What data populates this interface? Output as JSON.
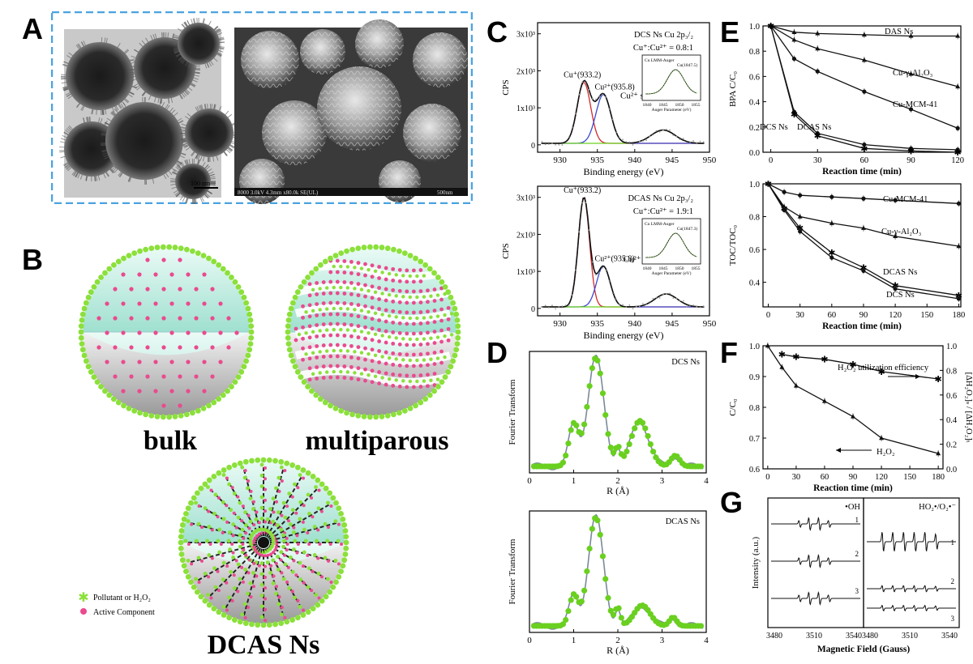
{
  "panels": {
    "A": {
      "label": "A",
      "tem_scale": "100 nm",
      "sem_info": "8000 3.0kV 4.3mm x80.0k SE(UL)",
      "sem_scale": "500nm"
    },
    "B": {
      "label": "B",
      "names": [
        "bulk",
        "multiparous",
        "DCAS Ns"
      ],
      "legend": [
        "Pollutant or H₂O₂",
        "Active Component"
      ]
    },
    "C": {
      "label": "C"
    },
    "D": {
      "label": "D"
    },
    "E": {
      "label": "E"
    },
    "F": {
      "label": "F"
    },
    "G": {
      "label": "G"
    }
  },
  "colors": {
    "green": "#8be03a",
    "pink": "#ea4a8f",
    "frame": "#4aa3e0",
    "red": "#d42a2a",
    "blue": "#3a4ad0",
    "black": "#111111",
    "lime": "#6ad020"
  },
  "chart_data": [
    {
      "id": "C-top",
      "type": "line",
      "xlabel": "Binding energy (eV)",
      "ylabel": "CPS",
      "xlim": [
        927,
        950
      ],
      "xticks": [
        930,
        935,
        940,
        945,
        950
      ],
      "ylim": [
        0,
        3000
      ],
      "yticks": [
        "0",
        "1x10³",
        "2x10³",
        "3x10³"
      ],
      "header": [
        "DCS Ns  Cu 2p₃/₂",
        "Cu⁺:Cu²⁺ = 0.8:1"
      ],
      "annotations": [
        "Cu⁺(933.2)",
        "Cu²⁺(935.8)",
        "Cu²⁺ satellite (943.8)"
      ],
      "inset": {
        "title": "Cu LMM-Auger",
        "peak": "Cu(1847.5)",
        "xlabel": "Auger Parameter (eV)",
        "xticks": [
          1840,
          1845,
          1850,
          1855
        ]
      },
      "series": [
        {
          "color": "red",
          "peaks": [
            [
              933.2,
              1650,
              0.9
            ]
          ]
        },
        {
          "color": "blue",
          "peaks": [
            [
              935.8,
              1320,
              1.0
            ]
          ]
        },
        {
          "color": "lime",
          "peaks": [
            [
              943.8,
              360,
              1.6
            ]
          ]
        },
        {
          "color": "black",
          "peaks": [
            [
              933.2,
              1650,
              0.9
            ],
            [
              935.8,
              1320,
              1.0
            ],
            [
              943.8,
              360,
              1.6
            ]
          ]
        }
      ]
    },
    {
      "id": "C-bottom",
      "type": "line",
      "xlabel": "Binding energy (eV)",
      "ylabel": "CPS",
      "xlim": [
        927,
        950
      ],
      "xticks": [
        930,
        935,
        940,
        945,
        950
      ],
      "ylim": [
        0,
        3000
      ],
      "yticks": [
        "0",
        "1x10³",
        "2x10³",
        "3x10³"
      ],
      "header": [
        "DCAS Ns  Cu 2p₃/₂",
        "Cu⁺:Cu²⁺ = 1.9:1"
      ],
      "annotations": [
        "Cu⁺(933.2)",
        "Cu²⁺(935.8)",
        "Cu²⁺ satellite (944.2)"
      ],
      "inset": {
        "title": "Cu LMM-Auger",
        "peak": "Cu(1847.3)",
        "xlabel": "Auger Parameter (eV)",
        "xticks": [
          1840,
          1845,
          1850,
          1855
        ]
      },
      "series": [
        {
          "color": "red",
          "peaks": [
            [
              933.2,
              2950,
              0.75
            ]
          ]
        },
        {
          "color": "blue",
          "peaks": [
            [
              935.8,
              1100,
              0.9
            ]
          ]
        },
        {
          "color": "lime",
          "peaks": [
            [
              944.2,
              350,
              1.5
            ]
          ]
        },
        {
          "color": "black",
          "peaks": [
            [
              933.2,
              2950,
              0.75
            ],
            [
              935.8,
              1100,
              0.9
            ],
            [
              944.2,
              350,
              1.5
            ]
          ]
        }
      ]
    },
    {
      "id": "D-top",
      "type": "line",
      "label": "DCS Ns",
      "xlabel": "R (Å)",
      "ylabel": "Fourier Transform",
      "xlim": [
        0,
        4
      ],
      "xticks": [
        0,
        1,
        2,
        3,
        4
      ],
      "peaks": [
        [
          1.0,
          0.38,
          0.11
        ],
        [
          1.5,
          1.0,
          0.18
        ],
        [
          2.0,
          0.15,
          0.06
        ],
        [
          2.5,
          0.42,
          0.2
        ],
        [
          3.3,
          0.1,
          0.1
        ]
      ]
    },
    {
      "id": "D-bottom",
      "type": "line",
      "label": "DCAS Ns",
      "xlabel": "R (Å)",
      "ylabel": "Fourier Transform",
      "xlim": [
        0,
        4
      ],
      "xticks": [
        0,
        1,
        2,
        3,
        4
      ],
      "peaks": [
        [
          1.0,
          0.28,
          0.1
        ],
        [
          1.5,
          1.0,
          0.17
        ],
        [
          2.0,
          0.16,
          0.06
        ],
        [
          2.55,
          0.19,
          0.18
        ],
        [
          3.25,
          0.08,
          0.08
        ]
      ]
    },
    {
      "id": "E-top",
      "type": "line",
      "xlabel": "Reaction time (min)",
      "ylabel": "BPA C/C₀",
      "xlim": [
        -5,
        122
      ],
      "xticks": [
        0,
        30,
        60,
        90,
        120
      ],
      "ylim": [
        0,
        1.0
      ],
      "yticks": [
        0.0,
        0.2,
        0.4,
        0.6,
        0.8,
        1.0
      ],
      "x": [
        0,
        15,
        30,
        60,
        90,
        120
      ],
      "series": [
        {
          "name": "DAS Ns",
          "values": [
            1.0,
            0.95,
            0.94,
            0.93,
            0.92,
            0.92
          ]
        },
        {
          "name": "Cu-γ-Al₂O₃",
          "values": [
            1.0,
            0.89,
            0.82,
            0.73,
            0.62,
            0.52
          ]
        },
        {
          "name": "Cu-MCM-41",
          "values": [
            1.0,
            0.74,
            0.64,
            0.48,
            0.34,
            0.19
          ]
        },
        {
          "name": "DCS Ns",
          "values": [
            1.0,
            0.32,
            0.15,
            0.06,
            0.03,
            0.02
          ]
        },
        {
          "name": "DCAS Ns",
          "values": [
            1.0,
            0.3,
            0.13,
            0.03,
            0.01,
            0.0
          ]
        }
      ]
    },
    {
      "id": "E-bottom",
      "type": "line",
      "xlabel": "Reaction time (min)",
      "ylabel": "TOC/TOC₀",
      "xlim": [
        -5,
        182
      ],
      "xticks": [
        0,
        30,
        60,
        90,
        120,
        150,
        180
      ],
      "ylim": [
        0.25,
        1.0
      ],
      "yticks": [
        0.4,
        0.6,
        0.8,
        1.0
      ],
      "x": [
        0,
        15,
        30,
        60,
        90,
        120,
        180
      ],
      "series": [
        {
          "name": "Cu-MCM-41",
          "values": [
            1.0,
            0.95,
            0.93,
            0.92,
            0.91,
            0.9,
            0.88
          ]
        },
        {
          "name": "Cu-γ-Al₂O₃",
          "values": [
            1.0,
            0.86,
            0.8,
            0.76,
            0.73,
            0.68,
            0.62
          ]
        },
        {
          "name": "DCAS Ns",
          "values": [
            1.0,
            0.85,
            0.73,
            0.58,
            0.49,
            0.38,
            0.32
          ]
        },
        {
          "name": "DCS Ns",
          "values": [
            1.0,
            0.84,
            0.71,
            0.55,
            0.47,
            0.36,
            0.3
          ]
        }
      ]
    },
    {
      "id": "F",
      "type": "line",
      "xlabel": "Reaction time (min)",
      "ylabel": "C/C₀",
      "ylabel_right": "[ΔH₂O₂]ₛ / [ΔH₂O₂]ₜ",
      "xlim": [
        -5,
        185
      ],
      "xticks": [
        0,
        30,
        60,
        90,
        120,
        150,
        180
      ],
      "ylim": [
        0.6,
        1.0
      ],
      "yticks": [
        0.6,
        0.7,
        0.8,
        0.9,
        1.0
      ],
      "ylim_right": [
        0.0,
        1.0
      ],
      "yticks_right": [
        0.0,
        0.2,
        0.4,
        0.6,
        0.8,
        1.0
      ],
      "x": [
        0,
        15,
        30,
        60,
        90,
        120,
        180
      ],
      "series": [
        {
          "name": "H₂O₂ utilization efficiency",
          "axis": "right",
          "values": [
            null,
            0.93,
            0.91,
            0.89,
            0.85,
            0.79,
            0.73
          ]
        },
        {
          "name": "H₂O₂",
          "axis": "left",
          "values": [
            1.0,
            0.93,
            0.87,
            0.82,
            0.77,
            0.7,
            0.65
          ]
        }
      ]
    },
    {
      "id": "G",
      "type": "line",
      "xlabel": "Magnetic Field (Gauss)",
      "ylabel": "Intensity (a.u.)",
      "xticks": [
        3480,
        3510,
        3540
      ],
      "left_label": "•OH",
      "right_label": "HO₂•/O₂•⁻",
      "traces_left": [
        "1",
        "2",
        "3"
      ],
      "traces_right": [
        "1",
        "2",
        "3"
      ]
    }
  ]
}
